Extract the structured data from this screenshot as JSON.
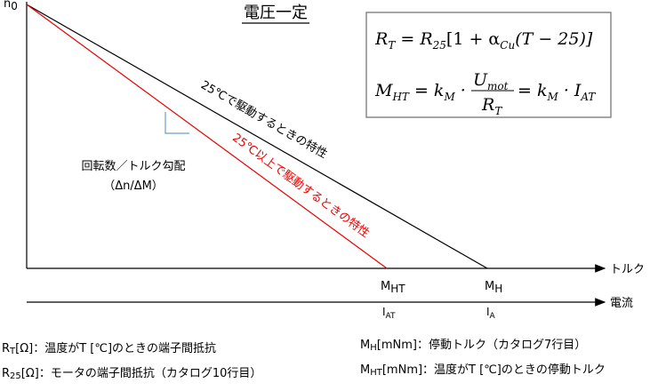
{
  "title": "電圧一定",
  "y_axis_label": [
    "n",
    "0"
  ],
  "formulas": [
    [
      "R",
      "T",
      " = R",
      "25",
      "[1 + α",
      "Cu",
      "(T − 25)]"
    ],
    [
      "M",
      "HT",
      " = k",
      "M",
      " · ",
      "U",
      "mot",
      "R",
      "T",
      " = k",
      "M",
      " · I",
      "AT"
    ]
  ],
  "line_labels": {
    "nominal": "25℃で駆動するときの特性",
    "heated": "25℃以上で駆動するときの特性"
  },
  "slope_label": [
    "回転数／トルク勾配",
    "（Δn/ΔM）"
  ],
  "axes": {
    "torque": "トルク",
    "current": "電流"
  },
  "torque_marks": {
    "mht": [
      "M",
      "HT"
    ],
    "mh": [
      "M",
      "H"
    ]
  },
  "current_marks": {
    "iat": [
      "I",
      "AT"
    ],
    "ia": [
      "I",
      "A"
    ]
  },
  "notes_left": [
    [
      "R",
      "T",
      "[Ω]：温度がT [℃]のときの端子間抵抗"
    ],
    [
      "R",
      "25",
      "[Ω]：モータの端子間抵抗（カタログ10行目）"
    ]
  ],
  "notes_right": [
    [
      "M",
      "H",
      "[mNm]：停動トルク（カタログ7行目）"
    ],
    [
      "M",
      "HT",
      "[mNm]：温度がT [℃]のときの停動トルク"
    ]
  ]
}
